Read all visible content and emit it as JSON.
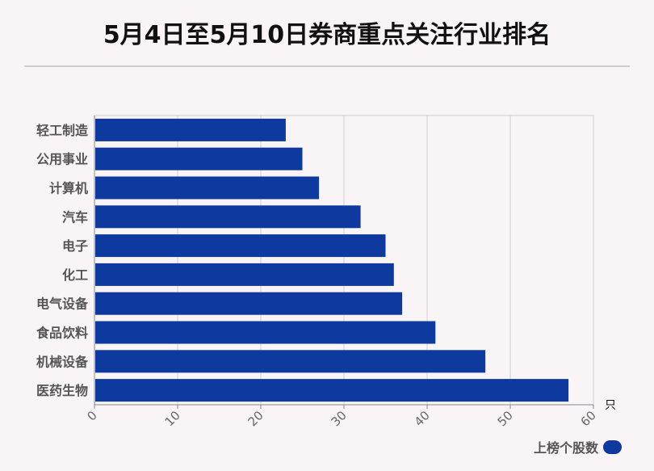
{
  "title": "5月4日至5月10日券商重点关注行业排名",
  "colors": {
    "bar": "#0e399f",
    "grid": "#d0d0d0",
    "axis": "#888888"
  },
  "chart_data": {
    "type": "bar",
    "orientation": "horizontal",
    "categories": [
      "轻工制造",
      "公用事业",
      "计算机",
      "汽车",
      "电子",
      "化工",
      "电气设备",
      "食品饮料",
      "机械设备",
      "医药生物"
    ],
    "series": [
      {
        "name": "上榜个股数",
        "values": [
          23,
          25,
          27,
          32,
          35,
          36,
          37,
          41,
          47,
          57
        ]
      }
    ],
    "x_ticks": [
      "0",
      "10",
      "20",
      "30",
      "40",
      "50",
      "60"
    ],
    "xlim": [
      0,
      60
    ],
    "x_unit": "只",
    "grid": true,
    "legend_position": "bottom-right"
  }
}
